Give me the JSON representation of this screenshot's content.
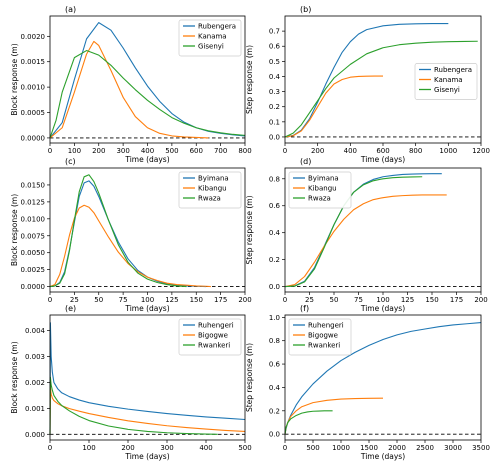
{
  "chart_data": [
    {
      "type": "line",
      "panel_label": "(a)",
      "xlabel": "Time (days)",
      "ylabel": "Block response (m)",
      "xlim": [
        0,
        800
      ],
      "ylim": [
        -0.0001,
        0.0024
      ],
      "xticks": [
        0,
        100,
        200,
        300,
        400,
        500,
        600,
        700,
        800
      ],
      "yticks": [
        0.0,
        0.0005,
        0.001,
        0.0015,
        0.002
      ],
      "ytick_labels": [
        "0.0000",
        "0.0005",
        "0.0010",
        "0.0015",
        "0.0020"
      ],
      "zero_line": true,
      "legend_position": "top-right",
      "series": [
        {
          "name": "Rubengera",
          "color": "#1f77b4",
          "x": [
            0,
            50,
            100,
            150,
            200,
            250,
            300,
            350,
            400,
            450,
            500,
            550,
            600,
            650,
            700,
            750,
            800
          ],
          "y": [
            0.0,
            0.0003,
            0.00115,
            0.00195,
            0.00227,
            0.00212,
            0.00177,
            0.00138,
            0.00102,
            0.00072,
            0.00048,
            0.00031,
            0.0002,
            0.00013,
            9e-05,
            6e-05,
            4e-05
          ]
        },
        {
          "name": "Kanama",
          "color": "#ff7f0e",
          "x": [
            0,
            50,
            100,
            150,
            180,
            200,
            250,
            300,
            350,
            400,
            450,
            500,
            550,
            600,
            650
          ],
          "y": [
            0.0,
            0.0002,
            0.0009,
            0.00165,
            0.0019,
            0.00182,
            0.00133,
            0.0008,
            0.00042,
            0.0002,
            9e-05,
            4e-05,
            2e-05,
            1e-05,
            0.0
          ]
        },
        {
          "name": "Gisenyi",
          "color": "#2ca02c",
          "x": [
            0,
            25,
            50,
            100,
            150,
            200,
            250,
            300,
            350,
            400,
            450,
            500,
            550,
            600,
            650,
            700,
            750,
            800
          ],
          "y": [
            0.0,
            0.00035,
            0.0009,
            0.00158,
            0.00172,
            0.00163,
            0.00143,
            0.00118,
            0.00095,
            0.00074,
            0.00056,
            0.0004,
            0.00029,
            0.0002,
            0.00014,
            0.0001,
            7e-05,
            5e-05
          ]
        }
      ]
    },
    {
      "type": "line",
      "panel_label": "(b)",
      "xlabel": "Time (days)",
      "ylabel": "Step response (m)",
      "xlim": [
        0,
        1200
      ],
      "ylim": [
        -0.04,
        0.8
      ],
      "xticks": [
        0,
        200,
        400,
        600,
        800,
        1000,
        1200
      ],
      "yticks": [
        0.0,
        0.1,
        0.2,
        0.3,
        0.4,
        0.5,
        0.6,
        0.7
      ],
      "ytick_labels": [
        "0.0",
        "0.1",
        "0.2",
        "0.3",
        "0.4",
        "0.5",
        "0.6",
        "0.7"
      ],
      "zero_line": true,
      "legend_position": "center-right",
      "series": [
        {
          "name": "Rubengera",
          "color": "#1f77b4",
          "x": [
            0,
            50,
            100,
            150,
            200,
            250,
            300,
            350,
            400,
            450,
            500,
            600,
            700,
            800,
            900,
            1000
          ],
          "y": [
            0.0,
            0.01,
            0.045,
            0.12,
            0.23,
            0.35,
            0.46,
            0.56,
            0.63,
            0.68,
            0.71,
            0.735,
            0.745,
            0.748,
            0.75,
            0.75
          ]
        },
        {
          "name": "Kanama",
          "color": "#ff7f0e",
          "x": [
            0,
            50,
            100,
            150,
            200,
            250,
            300,
            350,
            400,
            450,
            500,
            550,
            600
          ],
          "y": [
            0.0,
            0.008,
            0.04,
            0.11,
            0.2,
            0.29,
            0.35,
            0.38,
            0.395,
            0.4,
            0.402,
            0.403,
            0.403
          ]
        },
        {
          "name": "Gisenyi",
          "color": "#2ca02c",
          "x": [
            0,
            50,
            100,
            150,
            200,
            250,
            300,
            400,
            500,
            600,
            700,
            800,
            900,
            1000,
            1100,
            1180
          ],
          "y": [
            0.0,
            0.025,
            0.08,
            0.16,
            0.24,
            0.32,
            0.39,
            0.48,
            0.55,
            0.59,
            0.61,
            0.62,
            0.627,
            0.63,
            0.632,
            0.633
          ]
        }
      ]
    },
    {
      "type": "line",
      "panel_label": "(c)",
      "xlabel": "Time (days)",
      "ylabel": "Block response (m)",
      "xlim": [
        0,
        200
      ],
      "ylim": [
        -0.0008,
        0.0175
      ],
      "xticks": [
        0,
        25,
        50,
        75,
        100,
        125,
        150,
        175,
        200
      ],
      "yticks": [
        0.0,
        0.0025,
        0.005,
        0.0075,
        0.01,
        0.0125,
        0.015
      ],
      "ytick_labels": [
        "0.0000",
        "0.0025",
        "0.0050",
        "0.0075",
        "0.0100",
        "0.0125",
        "0.0150"
      ],
      "zero_line": true,
      "legend_position": "top-right",
      "series": [
        {
          "name": "Byimana",
          "color": "#1f77b4",
          "x": [
            0,
            5,
            10,
            15,
            20,
            25,
            30,
            35,
            40,
            45,
            50,
            60,
            70,
            80,
            90,
            100,
            110,
            120,
            130,
            140,
            150,
            160
          ],
          "y": [
            0.0,
            0.0001,
            0.0006,
            0.0022,
            0.0055,
            0.0095,
            0.0133,
            0.0153,
            0.0156,
            0.0148,
            0.0133,
            0.0098,
            0.0066,
            0.0041,
            0.0024,
            0.0014,
            0.0008,
            0.0004,
            0.0002,
            0.0001,
            5e-05,
            0.0
          ]
        },
        {
          "name": "Kibangu",
          "color": "#ff7f0e",
          "x": [
            0,
            5,
            10,
            15,
            20,
            25,
            30,
            35,
            40,
            45,
            50,
            60,
            70,
            80,
            90,
            100,
            110,
            120,
            130,
            140,
            150,
            160,
            165
          ],
          "y": [
            0.0,
            0.0003,
            0.0018,
            0.0045,
            0.0076,
            0.0101,
            0.0116,
            0.012,
            0.0117,
            0.0109,
            0.0097,
            0.0073,
            0.0051,
            0.0034,
            0.0022,
            0.0014,
            0.0009,
            0.0005,
            0.0003,
            0.0002,
            0.0001,
            5e-05,
            0.0
          ]
        },
        {
          "name": "Rwaza",
          "color": "#2ca02c",
          "x": [
            0,
            5,
            10,
            15,
            20,
            25,
            30,
            35,
            40,
            45,
            50,
            60,
            70,
            80,
            90,
            100,
            110,
            120,
            130,
            140
          ],
          "y": [
            0.0,
            0.0001,
            0.0005,
            0.0019,
            0.0053,
            0.0098,
            0.014,
            0.0162,
            0.0165,
            0.0155,
            0.0138,
            0.0098,
            0.0062,
            0.0036,
            0.002,
            0.0011,
            0.0006,
            0.0003,
            0.0001,
            0.0
          ]
        }
      ]
    },
    {
      "type": "line",
      "panel_label": "(d)",
      "xlabel": "Time (days)",
      "ylabel": "Step response (m)",
      "xlim": [
        0,
        200
      ],
      "ylim": [
        -0.04,
        0.88
      ],
      "xticks": [
        0,
        25,
        50,
        75,
        100,
        125,
        150,
        175,
        200
      ],
      "yticks": [
        0.0,
        0.2,
        0.4,
        0.6,
        0.8
      ],
      "ytick_labels": [
        "0.0",
        "0.2",
        "0.4",
        "0.6",
        "0.8"
      ],
      "zero_line": true,
      "legend_position": "top-left",
      "series": [
        {
          "name": "Byimana",
          "color": "#1f77b4",
          "x": [
            0,
            10,
            20,
            30,
            40,
            50,
            60,
            70,
            80,
            90,
            100,
            110,
            120,
            130,
            140,
            150,
            160
          ],
          "y": [
            0.0,
            0.005,
            0.04,
            0.14,
            0.3,
            0.46,
            0.6,
            0.7,
            0.76,
            0.795,
            0.815,
            0.825,
            0.832,
            0.835,
            0.837,
            0.838,
            0.838
          ]
        },
        {
          "name": "Kibangu",
          "color": "#ff7f0e",
          "x": [
            0,
            10,
            20,
            30,
            40,
            50,
            60,
            70,
            80,
            90,
            100,
            110,
            120,
            130,
            140,
            150,
            165
          ],
          "y": [
            0.0,
            0.015,
            0.075,
            0.18,
            0.3,
            0.41,
            0.5,
            0.57,
            0.615,
            0.645,
            0.66,
            0.67,
            0.675,
            0.678,
            0.68,
            0.68,
            0.68
          ]
        },
        {
          "name": "Rwaza",
          "color": "#2ca02c",
          "x": [
            0,
            10,
            20,
            30,
            40,
            50,
            60,
            70,
            80,
            90,
            100,
            110,
            120,
            130,
            140
          ],
          "y": [
            0.0,
            0.004,
            0.035,
            0.13,
            0.29,
            0.46,
            0.6,
            0.7,
            0.755,
            0.785,
            0.8,
            0.808,
            0.812,
            0.814,
            0.815
          ]
        }
      ]
    },
    {
      "type": "line",
      "panel_label": "(e)",
      "xlabel": "Time (days)",
      "ylabel": "Block response (m)",
      "xlim": [
        0,
        500
      ],
      "ylim": [
        -0.00022,
        0.0046
      ],
      "xticks": [
        0,
        100,
        200,
        300,
        400,
        500
      ],
      "yticks": [
        0.0,
        0.001,
        0.002,
        0.003,
        0.004
      ],
      "ytick_labels": [
        "0.000",
        "0.001",
        "0.002",
        "0.003",
        "0.004"
      ],
      "zero_line": true,
      "legend_position": "top-right",
      "series": [
        {
          "name": "Ruhengeri",
          "color": "#1f77b4",
          "x": [
            0,
            1,
            3,
            6,
            10,
            20,
            30,
            50,
            75,
            100,
            150,
            200,
            250,
            300,
            350,
            400,
            450,
            500
          ],
          "y": [
            0.0,
            0.0043,
            0.003,
            0.0024,
            0.002,
            0.00175,
            0.0016,
            0.00145,
            0.00132,
            0.00122,
            0.00108,
            0.00097,
            0.00088,
            0.0008,
            0.00073,
            0.00067,
            0.00062,
            0.00057
          ]
        },
        {
          "name": "Bigogwe",
          "color": "#ff7f0e",
          "x": [
            0,
            1,
            3,
            6,
            10,
            20,
            30,
            50,
            75,
            100,
            150,
            200,
            250,
            300,
            350,
            400,
            450,
            500
          ],
          "y": [
            0.0,
            0.0018,
            0.00155,
            0.0014,
            0.0013,
            0.00118,
            0.0011,
            0.00099,
            0.00089,
            0.0008,
            0.00065,
            0.00052,
            0.00042,
            0.00033,
            0.00026,
            0.0002,
            0.00015,
            0.00011
          ]
        },
        {
          "name": "Rwankeri",
          "color": "#2ca02c",
          "x": [
            0,
            1,
            3,
            6,
            10,
            20,
            30,
            50,
            75,
            100,
            150,
            200,
            250,
            300,
            350,
            400,
            430
          ],
          "y": [
            0.0,
            0.0022,
            0.0019,
            0.0017,
            0.0015,
            0.00127,
            0.00111,
            0.0009,
            0.00069,
            0.00053,
            0.00032,
            0.00019,
            0.00011,
            6e-05,
            3e-05,
            1e-05,
            0.0
          ]
        }
      ]
    },
    {
      "type": "line",
      "panel_label": "(f)",
      "xlabel": "Time (days)",
      "ylabel": "Step response (m)",
      "xlim": [
        0,
        3500
      ],
      "ylim": [
        -0.05,
        1.02
      ],
      "xticks": [
        0,
        500,
        1000,
        1500,
        2000,
        2500,
        3000,
        3500
      ],
      "yticks": [
        0.0,
        0.2,
        0.4,
        0.6,
        0.8,
        1.0
      ],
      "ytick_labels": [
        "0.0",
        "0.2",
        "0.4",
        "0.6",
        "0.8",
        "1.0"
      ],
      "zero_line": true,
      "legend_position": "top-left",
      "series": [
        {
          "name": "Ruhengeri",
          "color": "#1f77b4",
          "x": [
            0,
            20,
            50,
            100,
            200,
            300,
            500,
            750,
            1000,
            1250,
            1500,
            1750,
            2000,
            2250,
            2500,
            2750,
            3000,
            3250,
            3500
          ],
          "y": [
            0.0,
            0.05,
            0.1,
            0.16,
            0.25,
            0.32,
            0.43,
            0.54,
            0.63,
            0.7,
            0.76,
            0.81,
            0.85,
            0.88,
            0.9,
            0.92,
            0.935,
            0.945,
            0.955
          ]
        },
        {
          "name": "Bigogwe",
          "color": "#ff7f0e",
          "x": [
            0,
            20,
            50,
            100,
            200,
            300,
            500,
            750,
            1000,
            1250,
            1500,
            1750
          ],
          "y": [
            0.0,
            0.06,
            0.1,
            0.15,
            0.2,
            0.235,
            0.27,
            0.29,
            0.3,
            0.305,
            0.307,
            0.308
          ]
        },
        {
          "name": "Rwankeri",
          "color": "#2ca02c",
          "x": [
            0,
            20,
            50,
            100,
            200,
            300,
            400,
            500,
            600,
            700,
            800,
            850
          ],
          "y": [
            0.0,
            0.06,
            0.1,
            0.13,
            0.16,
            0.18,
            0.19,
            0.196,
            0.198,
            0.2,
            0.2,
            0.2
          ]
        }
      ]
    }
  ]
}
